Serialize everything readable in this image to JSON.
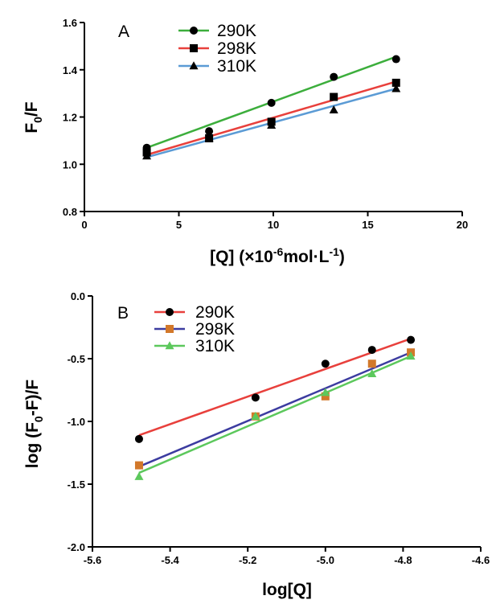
{
  "chart_data": [
    {
      "type": "scatter",
      "panel_label": "A",
      "xlabel_prefix": "[Q] (×10",
      "xlabel_exp1": "-6",
      "xlabel_mid": "mol·L",
      "xlabel_exp2": "-1",
      "xlabel_suffix": ")",
      "ylabel_main": "F",
      "ylabel_sub": "0",
      "ylabel_tail": "/F",
      "xlim": [
        0,
        20
      ],
      "ylim": [
        0.8,
        1.6
      ],
      "xticks": [
        0,
        5,
        10,
        15,
        20
      ],
      "yticks": [
        0.8,
        1.0,
        1.2,
        1.4,
        1.6
      ],
      "x_decimals": 0,
      "y_decimals": 1,
      "legend_position": "top",
      "series": [
        {
          "name": "290K",
          "marker": "circle",
          "line_color": "#3cae3c",
          "x": [
            3.3,
            6.6,
            9.9,
            13.2,
            16.5
          ],
          "y": [
            1.07,
            1.14,
            1.26,
            1.37,
            1.445
          ],
          "fit": [
            [
              3.3,
              1.07
            ],
            [
              16.5,
              1.455
            ]
          ]
        },
        {
          "name": "298K",
          "marker": "square",
          "line_color": "#e8403c",
          "x": [
            3.3,
            6.6,
            9.9,
            13.2,
            16.5
          ],
          "y": [
            1.05,
            1.11,
            1.18,
            1.285,
            1.345
          ],
          "fit": [
            [
              3.3,
              1.04
            ],
            [
              16.5,
              1.35
            ]
          ]
        },
        {
          "name": "310K",
          "marker": "triangle",
          "line_color": "#5b9bd5",
          "x": [
            3.3,
            6.6,
            9.9,
            13.2,
            16.5
          ],
          "y": [
            1.035,
            1.11,
            1.165,
            1.23,
            1.32
          ],
          "fit": [
            [
              3.3,
              1.03
            ],
            [
              16.5,
              1.32
            ]
          ]
        }
      ]
    },
    {
      "type": "scatter",
      "panel_label": "B",
      "xlabel": "log[Q]",
      "ylabel": "log (F0-F)/F",
      "ylabel_pre": "log (F",
      "ylabel_sub": "0",
      "ylabel_post": "-F)/F",
      "xlim": [
        -5.6,
        -4.6
      ],
      "ylim": [
        -2.0,
        0.0
      ],
      "xticks": [
        -5.6,
        -5.4,
        -5.2,
        -5.0,
        -4.8,
        -4.6
      ],
      "yticks": [
        -2.0,
        -1.5,
        -1.0,
        -0.5,
        0.0
      ],
      "x_decimals": 1,
      "y_decimals": 1,
      "legend_position": "top",
      "series": [
        {
          "name": "290K",
          "marker": "circle",
          "marker_color": "#000000",
          "line_color": "#e8403c",
          "x": [
            -5.48,
            -5.18,
            -5.0,
            -4.88,
            -4.78
          ],
          "y": [
            -1.14,
            -0.81,
            -0.54,
            -0.43,
            -0.35
          ],
          "fit": [
            [
              -5.48,
              -1.11
            ],
            [
              -4.78,
              -0.34
            ]
          ]
        },
        {
          "name": "298K",
          "marker": "square",
          "marker_color": "#d2782a",
          "line_color": "#3c3ca0",
          "x": [
            -5.48,
            -5.18,
            -5.0,
            -4.88,
            -4.78
          ],
          "y": [
            -1.35,
            -0.96,
            -0.8,
            -0.54,
            -0.45
          ],
          "fit": [
            [
              -5.48,
              -1.36
            ],
            [
              -4.78,
              -0.45
            ]
          ]
        },
        {
          "name": "310K",
          "marker": "triangle",
          "marker_color": "#5cc85c",
          "line_color": "#5cc85c",
          "x": [
            -5.48,
            -5.18,
            -5.0,
            -4.88,
            -4.78
          ],
          "y": [
            -1.44,
            -0.96,
            -0.77,
            -0.62,
            -0.48
          ],
          "fit": [
            [
              -5.48,
              -1.41
            ],
            [
              -4.78,
              -0.48
            ]
          ]
        }
      ]
    }
  ]
}
